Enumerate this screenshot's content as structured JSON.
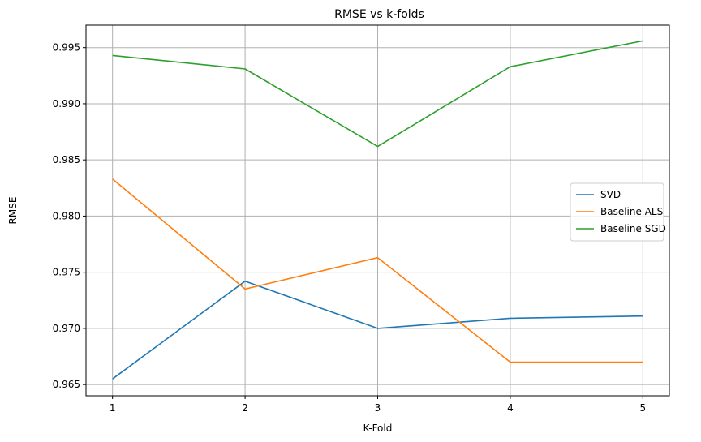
{
  "chart_data": {
    "type": "line",
    "title": "RMSE vs k-folds",
    "xlabel": "K-Fold",
    "ylabel": "RMSE",
    "x": [
      1,
      2,
      3,
      4,
      5
    ],
    "xticks": [
      "1",
      "2",
      "3",
      "4",
      "5"
    ],
    "yticks": [
      "0.965",
      "0.970",
      "0.975",
      "0.980",
      "0.985",
      "0.990",
      "0.995"
    ],
    "ytick_values": [
      0.965,
      0.97,
      0.975,
      0.98,
      0.985,
      0.99,
      0.995
    ],
    "xlim": [
      0.8,
      5.2
    ],
    "ylim": [
      0.964,
      0.997
    ],
    "grid": true,
    "legend_position": "center-right",
    "series": [
      {
        "name": "SVD",
        "color": "#1f77b4",
        "values": [
          0.9655,
          0.9742,
          0.97,
          0.9709,
          0.9711
        ]
      },
      {
        "name": "Baseline ALS",
        "color": "#ff7f0e",
        "values": [
          0.9833,
          0.9735,
          0.9763,
          0.967,
          0.967
        ]
      },
      {
        "name": "Baseline SGD",
        "color": "#2ca02c",
        "values": [
          0.9943,
          0.9931,
          0.9862,
          0.9933,
          0.9956
        ]
      }
    ]
  }
}
